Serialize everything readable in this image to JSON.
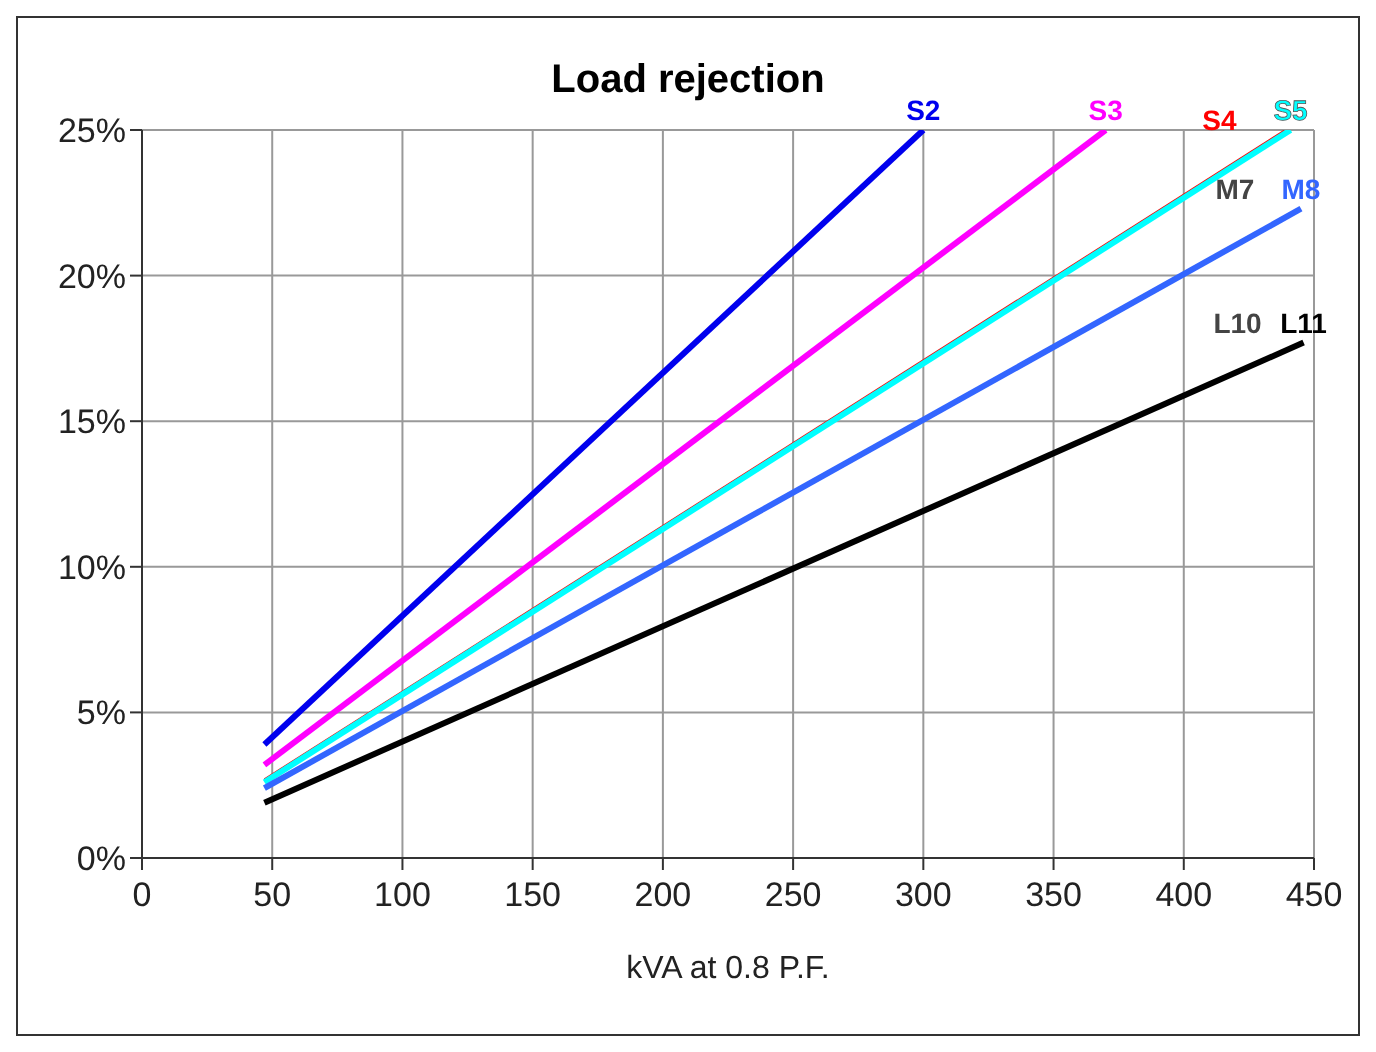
{
  "chart_data": {
    "type": "line",
    "title": "Load rejection",
    "xlabel": "kVA at 0.8 P.F.",
    "xlim": [
      0,
      450
    ],
    "xticks": [
      0,
      50,
      100,
      150,
      200,
      250,
      300,
      350,
      400,
      450
    ],
    "ylim": [
      0,
      25
    ],
    "yticks": [
      {
        "value": 0,
        "label": "0%"
      },
      {
        "value": 5,
        "label": "5%"
      },
      {
        "value": 10,
        "label": "10%"
      },
      {
        "value": 15,
        "label": "15%"
      },
      {
        "value": 20,
        "label": "20%"
      },
      {
        "value": 25,
        "label": "25%"
      }
    ],
    "annotations": [
      {
        "text": "M7",
        "x": 445,
        "y": 22.3
      },
      {
        "text": "L10",
        "x": 446,
        "y": 17.7
      }
    ],
    "grid": true,
    "legend": false,
    "marker": "none",
    "line_style": "solid",
    "series": [
      {
        "name": "S2",
        "color": "#0000ee",
        "x": [
          47,
          300
        ],
        "values": [
          3.9,
          25
        ]
      },
      {
        "name": "S3",
        "color": "#ff00ff",
        "x": [
          47,
          370
        ],
        "values": [
          3.2,
          25
        ]
      },
      {
        "name": "S4",
        "color": "#ff0000",
        "x": [
          47,
          439
        ],
        "values": [
          2.7,
          25
        ]
      },
      {
        "name": "S5",
        "color": "#00ffff",
        "x": [
          47,
          441
        ],
        "values": [
          2.6,
          25
        ]
      },
      {
        "name": "M8",
        "color": "#3366ff",
        "x": [
          47,
          445
        ],
        "values": [
          2.4,
          22.3
        ]
      },
      {
        "name": "L11",
        "color": "#000000",
        "x": [
          47,
          446
        ],
        "values": [
          1.9,
          17.7
        ]
      }
    ]
  }
}
